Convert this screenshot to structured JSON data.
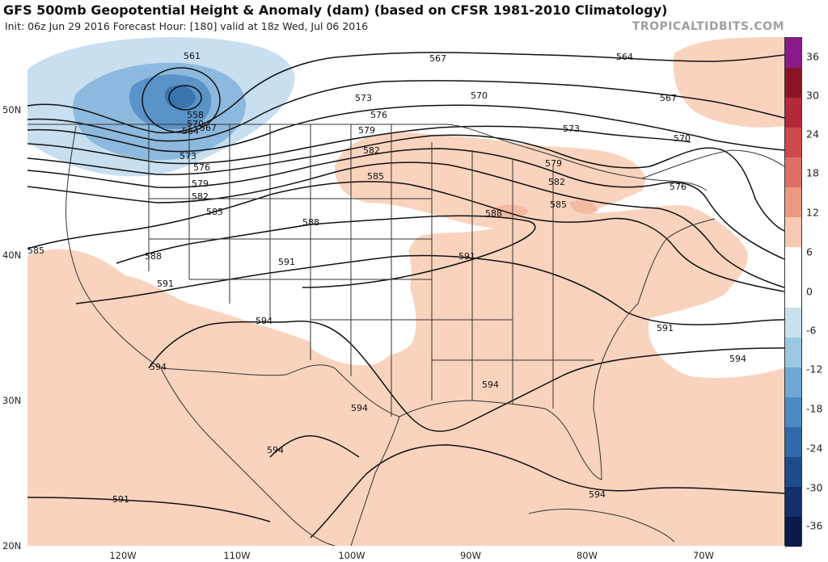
{
  "header": {
    "title": "GFS 500mb Geopotential Height & Anomaly (dam) (based on CFSR 1981-2010 Climatology)",
    "subtitle": "Init: 06z Jun 29 2016   Forecast Hour: [180]   valid at 18z Wed, Jul 06 2016",
    "brand": "TROPICALTIDBITS.COM"
  },
  "map": {
    "latitude_labels": [
      "50N",
      "40N",
      "30N",
      "20N"
    ],
    "longitude_labels": [
      "120W",
      "110W",
      "100W",
      "90W",
      "80W",
      "70W"
    ],
    "contour_labels": [
      "561",
      "558",
      "564",
      "567",
      "570",
      "573",
      "576",
      "579",
      "582",
      "585",
      "588",
      "591",
      "594"
    ],
    "colors": {
      "positive_anomaly": "#f9d3bd",
      "negative_light": "#c8dff0",
      "negative_mid": "#8db9de",
      "negative_dark": "#5a93c8",
      "contour": "#111111",
      "borders": "#333333"
    }
  },
  "colorbar": {
    "labels": [
      "36",
      "30",
      "24",
      "18",
      "12",
      "6",
      "0",
      "-6",
      "-12",
      "-18",
      "-24",
      "-30",
      "-36"
    ],
    "colors": [
      "#8b1a8c",
      "#8b1525",
      "#b4283a",
      "#cd4a4d",
      "#de6f66",
      "#ec9980",
      "#f8c9b2",
      "#ffffff",
      "#ffffff",
      "#c9e0ee",
      "#9cc7e2",
      "#6fa8d3",
      "#4b8ac2",
      "#2f6aaa",
      "#1d4b8c",
      "#12306c",
      "#0b1a4a"
    ]
  }
}
